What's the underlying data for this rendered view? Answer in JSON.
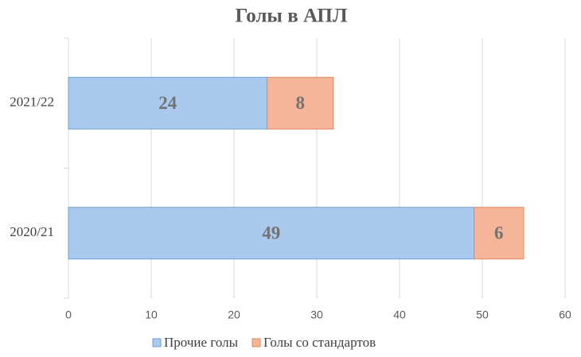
{
  "chart_data": {
    "type": "stacked-bar-horizontal",
    "title": "Голы в АПЛ",
    "categories": [
      "2021/22",
      "2020/21"
    ],
    "series": [
      {
        "name": "Прочие голы",
        "color": "#a9c9ee",
        "values": [
          24,
          49
        ]
      },
      {
        "name": "Голы со стандартов",
        "color": "#f6b598",
        "values": [
          8,
          6
        ]
      }
    ],
    "xlim": [
      0,
      60
    ],
    "xticks": [
      0,
      10,
      20,
      30,
      40,
      50,
      60
    ],
    "grid": true,
    "legend": "bottom"
  }
}
